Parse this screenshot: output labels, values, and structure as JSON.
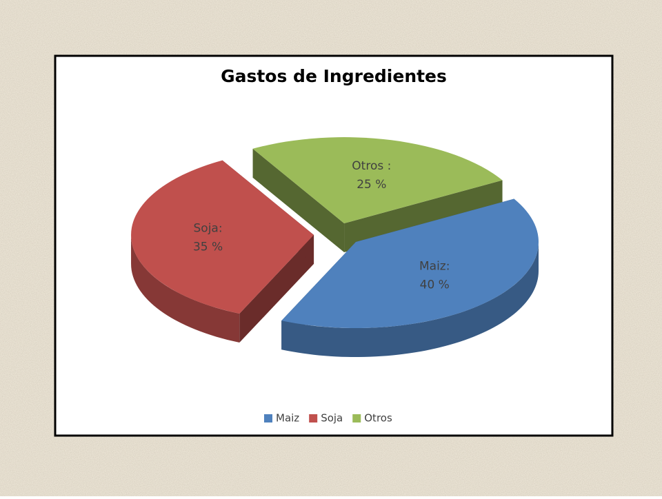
{
  "chart_data": {
    "type": "pie",
    "title": "Gastos de Ingredientes",
    "categories": [
      "Maiz",
      "Soja",
      "Otros"
    ],
    "values": [
      40,
      35,
      25
    ],
    "label_names": [
      "Maiz:",
      "Soja:",
      "Otros :"
    ],
    "value_labels": [
      "40 %",
      "35 %",
      "25 %"
    ],
    "colors": [
      "#4f81bd",
      "#c0504d",
      "#9bbb59"
    ],
    "three_d": true,
    "exploded": true,
    "legend": "bottom"
  }
}
